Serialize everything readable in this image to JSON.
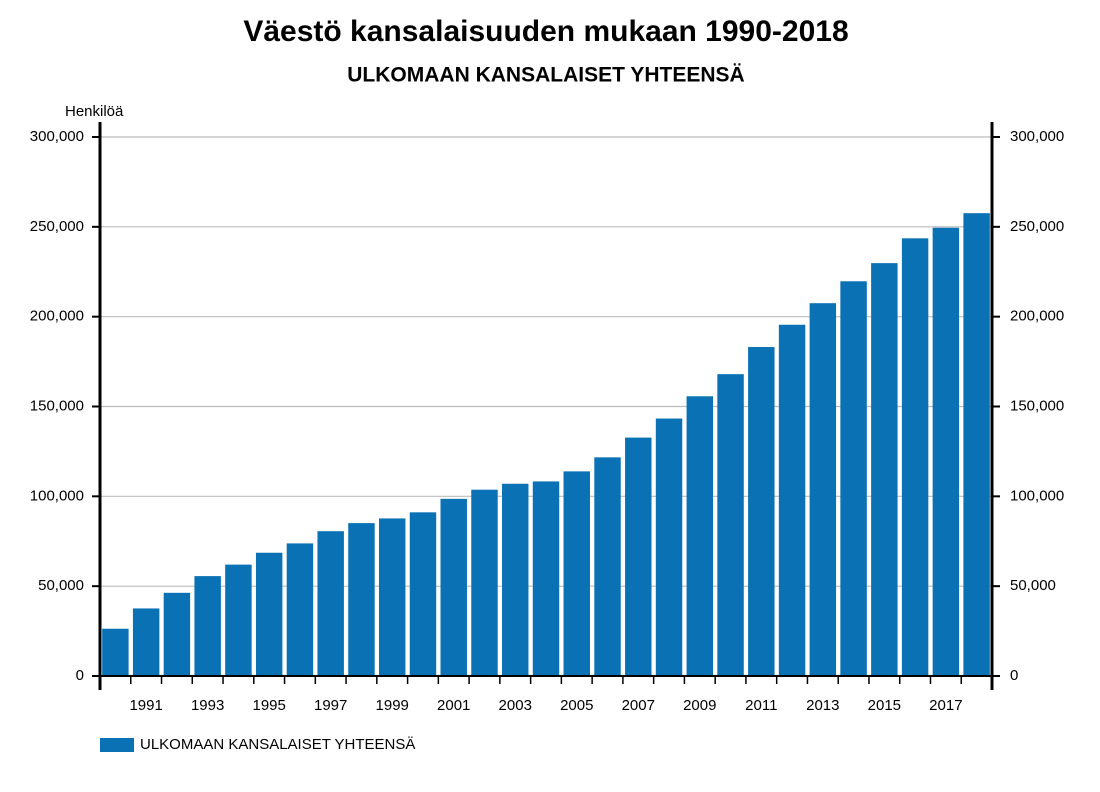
{
  "chart_data": {
    "type": "bar",
    "title": "Väestö kansalaisuuden mukaan 1990-2018",
    "subtitle": "ULKOMAAN KANSALAISET YHTEENSÄ",
    "y_label": "Henkilöä",
    "categories": [
      null,
      "1991",
      null,
      "1993",
      null,
      "1995",
      null,
      "1997",
      null,
      "1999",
      null,
      "2001",
      null,
      "2003",
      null,
      "2005",
      null,
      "2007",
      null,
      "2009",
      null,
      "2011",
      null,
      "2013",
      null,
      "2015",
      null,
      "2017",
      null
    ],
    "series": [
      {
        "name": "ULKOMAAN KANSALAISET YHTEENSÄ",
        "color": "#0a72b4",
        "values": [
          26300,
          37600,
          46300,
          55600,
          62000,
          68600,
          73800,
          80600,
          85100,
          87700,
          91100,
          98600,
          103700,
          107000,
          108300,
          113900,
          121700,
          132700,
          143300,
          155700,
          168000,
          183100,
          195500,
          207500,
          219700,
          229800,
          243600,
          249500,
          257600
        ]
      }
    ],
    "ylim": [
      0,
      300000
    ],
    "yticks": [
      0,
      {
        "value": 50000,
        "label": "50,000"
      },
      {
        "value": 100000,
        "label": "100,000"
      },
      {
        "value": 150000,
        "label": "150,000"
      },
      {
        "value": 200000,
        "label": "200,000"
      },
      {
        "value": 250000,
        "label": "250,000"
      },
      {
        "value": 300000,
        "label": "300,000"
      }
    ],
    "grid": true,
    "right_axis": true,
    "legend": "bottom-left"
  }
}
